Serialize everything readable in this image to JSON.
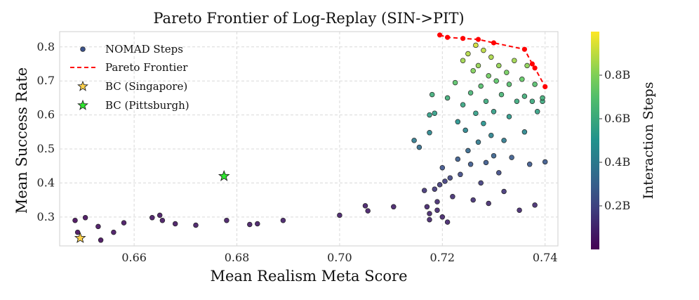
{
  "chart_data": {
    "type": "scatter",
    "title": "Pareto Frontier of Log-Replay (SIN->PIT)",
    "xlabel": "Mean Realism Meta Score",
    "ylabel": "Mean Success Rate",
    "xlim": [
      0.6455,
      0.7425
    ],
    "ylim": [
      0.215,
      0.845
    ],
    "x_ticks": [
      "0.66",
      "0.68",
      "0.70",
      "0.72",
      "0.74"
    ],
    "y_ticks": [
      "0.3",
      "0.4",
      "0.5",
      "0.6",
      "0.7",
      "0.8"
    ],
    "grid": true,
    "legend_position": "top-left",
    "colorbar": {
      "label": "Interaction Steps",
      "colormap": "viridis",
      "range_B": [
        0.0,
        1.0
      ],
      "ticks": [
        "0.2B",
        "0.4B",
        "0.6B",
        "0.8B"
      ]
    },
    "legend": [
      {
        "label": "NOMAD Steps",
        "marker": "circle"
      },
      {
        "label": "Pareto Frontier",
        "marker": "dashed-line",
        "color": "#ff0000"
      },
      {
        "label": "BC (Singapore)",
        "marker": "star",
        "color": "#ffd24a"
      },
      {
        "label": "BC (Pittsburgh)",
        "marker": "star",
        "color": "#2ee82e"
      }
    ],
    "series": [
      {
        "name": "NOMAD Steps",
        "note_colour": "colour = interaction steps (billions)",
        "points": [
          [
            0.6485,
            0.29,
            0.02
          ],
          [
            0.649,
            0.255,
            0.03
          ],
          [
            0.6505,
            0.298,
            0.03
          ],
          [
            0.653,
            0.272,
            0.04
          ],
          [
            0.6535,
            0.232,
            0.03
          ],
          [
            0.656,
            0.255,
            0.05
          ],
          [
            0.658,
            0.283,
            0.05
          ],
          [
            0.6635,
            0.298,
            0.06
          ],
          [
            0.665,
            0.305,
            0.06
          ],
          [
            0.6655,
            0.29,
            0.06
          ],
          [
            0.668,
            0.28,
            0.06
          ],
          [
            0.672,
            0.276,
            0.07
          ],
          [
            0.678,
            0.29,
            0.07
          ],
          [
            0.6825,
            0.278,
            0.07
          ],
          [
            0.684,
            0.28,
            0.07
          ],
          [
            0.689,
            0.29,
            0.08
          ],
          [
            0.7,
            0.305,
            0.08
          ],
          [
            0.705,
            0.333,
            0.08
          ],
          [
            0.7055,
            0.318,
            0.08
          ],
          [
            0.7105,
            0.33,
            0.09
          ],
          [
            0.7145,
            0.525,
            0.4
          ],
          [
            0.7155,
            0.505,
            0.35
          ],
          [
            0.7165,
            0.378,
            0.15
          ],
          [
            0.717,
            0.33,
            0.1
          ],
          [
            0.7175,
            0.31,
            0.1
          ],
          [
            0.7175,
            0.292,
            0.1
          ],
          [
            0.7175,
            0.548,
            0.45
          ],
          [
            0.7175,
            0.6,
            0.55
          ],
          [
            0.718,
            0.66,
            0.62
          ],
          [
            0.7185,
            0.382,
            0.16
          ],
          [
            0.7185,
            0.605,
            0.55
          ],
          [
            0.719,
            0.345,
            0.12
          ],
          [
            0.719,
            0.32,
            0.11
          ],
          [
            0.7195,
            0.395,
            0.17
          ],
          [
            0.72,
            0.445,
            0.25
          ],
          [
            0.72,
            0.3,
            0.1
          ],
          [
            0.7205,
            0.405,
            0.18
          ],
          [
            0.721,
            0.65,
            0.62
          ],
          [
            0.721,
            0.285,
            0.1
          ],
          [
            0.7215,
            0.415,
            0.2
          ],
          [
            0.722,
            0.36,
            0.13
          ],
          [
            0.7225,
            0.695,
            0.72
          ],
          [
            0.723,
            0.47,
            0.28
          ],
          [
            0.723,
            0.58,
            0.5
          ],
          [
            0.7235,
            0.425,
            0.22
          ],
          [
            0.724,
            0.63,
            0.58
          ],
          [
            0.724,
            0.76,
            0.85
          ],
          [
            0.7245,
            0.555,
            0.45
          ],
          [
            0.725,
            0.78,
            0.88
          ],
          [
            0.725,
            0.495,
            0.33
          ],
          [
            0.7255,
            0.665,
            0.65
          ],
          [
            0.7255,
            0.455,
            0.27
          ],
          [
            0.726,
            0.73,
            0.8
          ],
          [
            0.726,
            0.35,
            0.13
          ],
          [
            0.7265,
            0.605,
            0.55
          ],
          [
            0.7265,
            0.805,
            0.93
          ],
          [
            0.727,
            0.52,
            0.4
          ],
          [
            0.727,
            0.745,
            0.83
          ],
          [
            0.7275,
            0.685,
            0.7
          ],
          [
            0.7275,
            0.4,
            0.18
          ],
          [
            0.728,
            0.575,
            0.5
          ],
          [
            0.728,
            0.79,
            0.9
          ],
          [
            0.7285,
            0.46,
            0.27
          ],
          [
            0.7285,
            0.64,
            0.6
          ],
          [
            0.729,
            0.715,
            0.77
          ],
          [
            0.729,
            0.34,
            0.12
          ],
          [
            0.7295,
            0.54,
            0.43
          ],
          [
            0.7295,
            0.77,
            0.87
          ],
          [
            0.73,
            0.61,
            0.55
          ],
          [
            0.73,
            0.48,
            0.3
          ],
          [
            0.7305,
            0.7,
            0.73
          ],
          [
            0.731,
            0.43,
            0.22
          ],
          [
            0.731,
            0.745,
            0.83
          ],
          [
            0.7315,
            0.66,
            0.65
          ],
          [
            0.732,
            0.525,
            0.4
          ],
          [
            0.732,
            0.375,
            0.15
          ],
          [
            0.7325,
            0.725,
            0.78
          ],
          [
            0.733,
            0.595,
            0.53
          ],
          [
            0.733,
            0.69,
            0.7
          ],
          [
            0.7335,
            0.475,
            0.28
          ],
          [
            0.734,
            0.76,
            0.85
          ],
          [
            0.7345,
            0.64,
            0.6
          ],
          [
            0.735,
            0.32,
            0.11
          ],
          [
            0.7355,
            0.705,
            0.75
          ],
          [
            0.736,
            0.55,
            0.45
          ],
          [
            0.736,
            0.655,
            0.62
          ],
          [
            0.7365,
            0.745,
            0.82
          ],
          [
            0.737,
            0.455,
            0.26
          ],
          [
            0.7375,
            0.64,
            0.6
          ],
          [
            0.738,
            0.335,
            0.12
          ],
          [
            0.738,
            0.69,
            0.7
          ],
          [
            0.7385,
            0.61,
            0.56
          ],
          [
            0.7395,
            0.64,
            0.6
          ],
          [
            0.74,
            0.462,
            0.27
          ],
          [
            0.7395,
            0.65,
            0.62
          ]
        ]
      },
      {
        "name": "Pareto Frontier",
        "x": [
          0.7195,
          0.721,
          0.724,
          0.727,
          0.73,
          0.736,
          0.7375,
          0.738,
          0.74
        ],
        "y": [
          0.835,
          0.828,
          0.825,
          0.822,
          0.812,
          0.793,
          0.75,
          0.738,
          0.683
        ]
      },
      {
        "name": "BC (Singapore)",
        "x": [
          0.6495
        ],
        "y": [
          0.238
        ]
      },
      {
        "name": "BC (Pittsburgh)",
        "x": [
          0.6775
        ],
        "y": [
          0.42
        ]
      }
    ]
  }
}
